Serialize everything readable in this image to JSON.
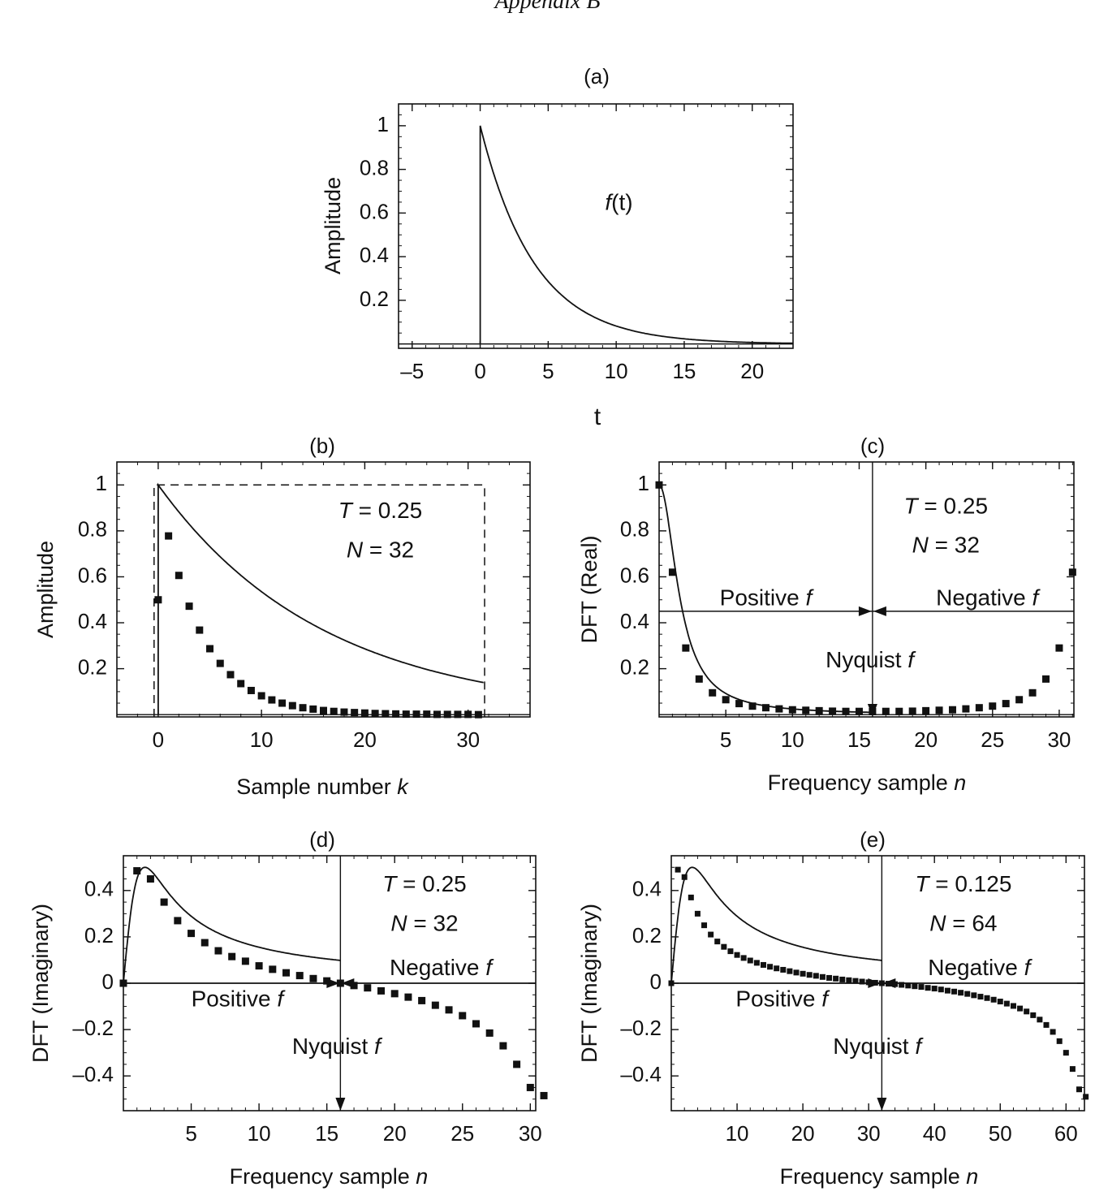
{
  "page": {
    "header": "Appendix B"
  },
  "chart_data": [
    {
      "id": "a",
      "panel_label": "(a)",
      "type": "line",
      "xlabel": "t",
      "ylabel": "Amplitude",
      "xlim": [
        -6,
        23
      ],
      "ylim": [
        -0.02,
        1.1
      ],
      "xticks": [
        -5,
        0,
        5,
        10,
        15,
        20
      ],
      "xtick_labels": [
        "–5",
        "0",
        "5",
        "10",
        "15",
        "20"
      ],
      "yticks": [
        0.2,
        0.4,
        0.6,
        0.8,
        1
      ],
      "ytick_labels": [
        "0.2",
        "0.4",
        "0.6",
        "0.8",
        "1"
      ],
      "curve": {
        "kind": "exp_decay",
        "tau": 4,
        "from": 0,
        "to": 23,
        "step_at_zero": true
      },
      "annotations": [
        {
          "text": "f(t)",
          "x": 10.2,
          "y": 0.64
        }
      ]
    },
    {
      "id": "b",
      "panel_label": "(b)",
      "type": "scatter",
      "xlabel": "Sample number k",
      "ylabel": "Amplitude",
      "xlim": [
        -4,
        36
      ],
      "ylim": [
        -0.01,
        1.1
      ],
      "xticks": [
        0,
        10,
        20,
        30
      ],
      "xtick_labels": [
        "0",
        "10",
        "20",
        "30"
      ],
      "yticks": [
        0.2,
        0.4,
        0.6,
        0.8,
        1
      ],
      "ytick_labels": [
        "0.2",
        "0.4",
        "0.6",
        "0.8",
        "1"
      ],
      "window": {
        "x0": -0.4,
        "x1": 31.6,
        "height": 1.0
      },
      "curve": {
        "kind": "exp_decay",
        "tau": 4,
        "sample_T": 0.25,
        "from": 0,
        "to": 31.5,
        "step_at_zero": true
      },
      "points": {
        "x": [
          0,
          1,
          2,
          3,
          4,
          5,
          6,
          7,
          8,
          9,
          10,
          11,
          12,
          13,
          14,
          15,
          16,
          17,
          18,
          19,
          20,
          21,
          22,
          23,
          24,
          25,
          26,
          27,
          28,
          29,
          30,
          31
        ],
        "y": [
          0.5,
          0.778,
          0.606,
          0.472,
          0.368,
          0.287,
          0.223,
          0.174,
          0.135,
          0.105,
          0.082,
          0.064,
          0.05,
          0.039,
          0.03,
          0.024,
          0.018,
          0.014,
          0.011,
          0.009,
          0.007,
          0.005,
          0.004,
          0.003,
          0.002,
          0.002,
          0.002,
          0.001,
          0.001,
          0.001,
          0.001,
          0.0
        ]
      },
      "annotations": [
        {
          "text": "T = 0.25",
          "x": 21.5,
          "y": 0.88
        },
        {
          "text": "N = 32",
          "x": 21.5,
          "y": 0.71
        }
      ]
    },
    {
      "id": "c",
      "panel_label": "(c)",
      "type": "scatter",
      "xlabel": "Frequency sample n",
      "ylabel": "DFT (Real)",
      "xlim": [
        0,
        31.1
      ],
      "ylim": [
        -0.01,
        1.1
      ],
      "xticks": [
        5,
        10,
        15,
        20,
        25,
        30
      ],
      "xtick_labels": [
        "5",
        "10",
        "15",
        "20",
        "25",
        "30"
      ],
      "yticks": [
        0.2,
        0.4,
        0.6,
        0.8,
        1
      ],
      "ytick_labels": [
        "0.2",
        "0.4",
        "0.6",
        "0.8",
        "1"
      ],
      "nyquist": 16,
      "arrow_y": 0.45,
      "curve": {
        "kind": "real_spectrum",
        "a": 0.6283,
        "from": 0,
        "to": 16
      },
      "points": {
        "x": [
          0,
          1,
          2,
          3,
          4,
          5,
          6,
          7,
          8,
          9,
          10,
          11,
          12,
          13,
          14,
          15,
          16,
          17,
          18,
          19,
          20,
          21,
          22,
          23,
          24,
          25,
          26,
          27,
          28,
          29,
          30,
          31
        ],
        "y": [
          1.0,
          0.62,
          0.29,
          0.155,
          0.095,
          0.065,
          0.048,
          0.037,
          0.03,
          0.025,
          0.021,
          0.019,
          0.017,
          0.015,
          0.014,
          0.014,
          0.013,
          0.014,
          0.014,
          0.015,
          0.017,
          0.019,
          0.021,
          0.025,
          0.03,
          0.037,
          0.048,
          0.065,
          0.095,
          0.155,
          0.29,
          0.62
        ]
      },
      "annotations": [
        {
          "text": "T = 0.25",
          "x": 21.5,
          "y": 0.9
        },
        {
          "text": "N = 32",
          "x": 21.5,
          "y": 0.73
        },
        {
          "text": "Positive f",
          "x": 8.0,
          "y": 0.5
        },
        {
          "text": "Negative f",
          "x": 24.6,
          "y": 0.5
        },
        {
          "text": "Nyquist f",
          "x": 15.8,
          "y": 0.23
        }
      ]
    },
    {
      "id": "d",
      "panel_label": "(d)",
      "type": "scatter",
      "xlabel": "Frequency sample n",
      "ylabel": "DFT (Imaginary)",
      "xlim": [
        0,
        30.4
      ],
      "ylim": [
        -0.55,
        0.55
      ],
      "xticks": [
        5,
        10,
        15,
        20,
        25,
        30
      ],
      "xtick_labels": [
        "5",
        "10",
        "15",
        "20",
        "25",
        "30"
      ],
      "yticks": [
        -0.4,
        -0.2,
        0,
        0.2,
        0.4
      ],
      "ytick_labels": [
        "–0.4",
        "–0.2",
        "0",
        "0.2",
        "0.4"
      ],
      "nyquist": 16,
      "arrow_y": 0,
      "curve": {
        "kind": "imag_spectrum",
        "a": 0.6283,
        "from": 0,
        "to": 16
      },
      "points": {
        "x": [
          0,
          1,
          2,
          3,
          4,
          5,
          6,
          7,
          8,
          9,
          10,
          11,
          12,
          13,
          14,
          15,
          16,
          17,
          18,
          19,
          20,
          21,
          22,
          23,
          24,
          25,
          26,
          27,
          28,
          29,
          30,
          31
        ],
        "y": [
          0.0,
          0.485,
          0.45,
          0.35,
          0.27,
          0.215,
          0.175,
          0.14,
          0.115,
          0.095,
          0.075,
          0.06,
          0.045,
          0.033,
          0.02,
          0.01,
          0.0,
          -0.01,
          -0.02,
          -0.033,
          -0.045,
          -0.06,
          -0.075,
          -0.095,
          -0.115,
          -0.14,
          -0.175,
          -0.215,
          -0.27,
          -0.35,
          -0.45,
          -0.485
        ]
      },
      "annotations": [
        {
          "text": "T = 0.25",
          "x": 22.2,
          "y": 0.42
        },
        {
          "text": "N = 32",
          "x": 22.2,
          "y": 0.25
        },
        {
          "text": "Negative f",
          "x": 23.4,
          "y": 0.06
        },
        {
          "text": "Positive f",
          "x": 8.4,
          "y": -0.075
        },
        {
          "text": "Nyquist f",
          "x": 15.7,
          "y": -0.28
        }
      ]
    },
    {
      "id": "e",
      "panel_label": "(e)",
      "type": "scatter",
      "xlabel": "Frequency sample n",
      "ylabel": "DFT (Imaginary)",
      "xlim": [
        0,
        62.8
      ],
      "ylim": [
        -0.55,
        0.55
      ],
      "xticks": [
        10,
        20,
        30,
        40,
        50,
        60
      ],
      "xtick_labels": [
        "10",
        "20",
        "30",
        "40",
        "50",
        "60"
      ],
      "yticks": [
        -0.4,
        -0.2,
        0,
        0.2,
        0.4
      ],
      "ytick_labels": [
        "–0.4",
        "–0.2",
        "0",
        "0.2",
        "0.4"
      ],
      "nyquist": 32,
      "arrow_y": 0,
      "curve": {
        "kind": "imag_spectrum",
        "a": 0.3142,
        "from": 0,
        "to": 32
      },
      "points": {
        "x": [
          0,
          1,
          2,
          3,
          4,
          5,
          6,
          7,
          8,
          9,
          10,
          11,
          12,
          13,
          14,
          15,
          16,
          17,
          18,
          19,
          20,
          21,
          22,
          23,
          24,
          25,
          26,
          27,
          28,
          29,
          30,
          31,
          32,
          33,
          34,
          35,
          36,
          37,
          38,
          39,
          40,
          41,
          42,
          43,
          44,
          45,
          46,
          47,
          48,
          49,
          50,
          51,
          52,
          53,
          54,
          55,
          56,
          57,
          58,
          59,
          60,
          61,
          62,
          63
        ],
        "y": [
          0.0,
          0.49,
          0.458,
          0.37,
          0.3,
          0.25,
          0.21,
          0.18,
          0.157,
          0.138,
          0.122,
          0.109,
          0.098,
          0.088,
          0.079,
          0.071,
          0.064,
          0.058,
          0.052,
          0.046,
          0.041,
          0.036,
          0.032,
          0.027,
          0.023,
          0.02,
          0.016,
          0.013,
          0.01,
          0.007,
          0.004,
          0.002,
          0.0,
          -0.002,
          -0.004,
          -0.007,
          -0.01,
          -0.013,
          -0.016,
          -0.02,
          -0.023,
          -0.027,
          -0.032,
          -0.036,
          -0.041,
          -0.046,
          -0.052,
          -0.058,
          -0.064,
          -0.071,
          -0.079,
          -0.088,
          -0.098,
          -0.109,
          -0.122,
          -0.138,
          -0.157,
          -0.18,
          -0.21,
          -0.25,
          -0.3,
          -0.37,
          -0.458,
          -0.49
        ]
      },
      "annotations": [
        {
          "text": "T = 0.125",
          "x": 44.4,
          "y": 0.42
        },
        {
          "text": "N = 64",
          "x": 44.4,
          "y": 0.25
        },
        {
          "text": "Negative f",
          "x": 46.8,
          "y": 0.06
        },
        {
          "text": "Positive f",
          "x": 16.8,
          "y": -0.075
        },
        {
          "text": "Nyquist f",
          "x": 31.3,
          "y": -0.28
        }
      ]
    }
  ]
}
